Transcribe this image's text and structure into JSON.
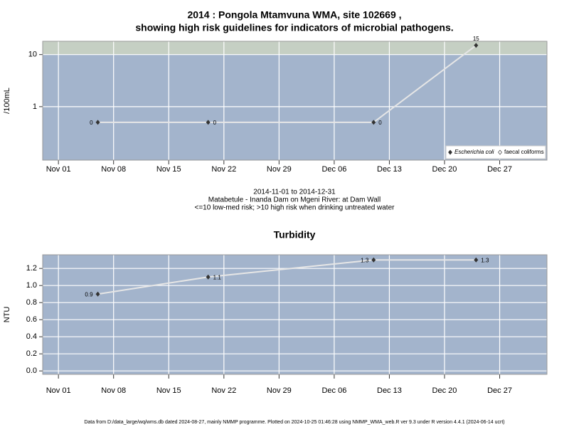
{
  "chart_data": [
    {
      "type": "line",
      "log_y": true,
      "title": [
        "2014 : Pongola Mtamvuna WMA, site 102669 ,",
        "showing high risk guidelines for indicators of microbial pathogens."
      ],
      "y_label": "/100mL",
      "x": [
        "2014-11-06",
        "2014-11-20",
        "2014-12-11",
        "2014-12-24"
      ],
      "series": [
        {
          "name": "Escherichia coli",
          "color": "#333333",
          "values": [
            0.5,
            0.5,
            0.5,
            15
          ],
          "value_labels": [
            "0",
            "0",
            "0",
            "15"
          ]
        },
        {
          "name": "faecal coliforms",
          "color": "#ffffff",
          "values": [
            null,
            null,
            null,
            null
          ]
        }
      ],
      "xlim": [
        "2014-10-30",
        "2015-01-02"
      ],
      "xticks": [
        {
          "value": "2014-11-01",
          "label": "Nov 01"
        },
        {
          "value": "2014-11-08",
          "label": "Nov 08"
        },
        {
          "value": "2014-11-15",
          "label": "Nov 15"
        },
        {
          "value": "2014-11-22",
          "label": "Nov 22"
        },
        {
          "value": "2014-11-29",
          "label": "Nov 29"
        },
        {
          "value": "2014-12-06",
          "label": "Dec 06"
        },
        {
          "value": "2014-12-13",
          "label": "Dec 13"
        },
        {
          "value": "2014-12-20",
          "label": "Dec 20"
        },
        {
          "value": "2014-12-27",
          "label": "Dec 27"
        }
      ],
      "ylim": [
        0.094,
        18
      ],
      "yticks": [
        1,
        10
      ],
      "grid": true,
      "background": "#a3b4cc",
      "line_color": "#e6e6e6",
      "risk_band": {
        "from": 10,
        "color": "#c5cfc3"
      },
      "legend": "bottom-right",
      "notes": [
        "2014-11-01 to 2014-12-31",
        "Matabetule - Inanda Dam on Mgeni River: at Dam Wall",
        "<=10 low-med risk; >10 high risk when drinking untreated water"
      ]
    },
    {
      "type": "line",
      "log_y": false,
      "title": [
        "Turbidity"
      ],
      "y_label": "NTU",
      "x": [
        "2014-11-06",
        "2014-11-20",
        "2014-12-11",
        "2014-12-24"
      ],
      "series": [
        {
          "name": "Turbidity",
          "color": "#333333",
          "values": [
            0.9,
            1.1,
            1.3,
            1.3
          ]
        }
      ],
      "xlim": [
        "2014-10-30",
        "2015-01-02"
      ],
      "xticks": [
        {
          "value": "2014-11-01",
          "label": "Nov 01"
        },
        {
          "value": "2014-11-08",
          "label": "Nov 08"
        },
        {
          "value": "2014-11-15",
          "label": "Nov 15"
        },
        {
          "value": "2014-11-22",
          "label": "Nov 22"
        },
        {
          "value": "2014-11-29",
          "label": "Nov 29"
        },
        {
          "value": "2014-12-06",
          "label": "Dec 06"
        },
        {
          "value": "2014-12-13",
          "label": "Dec 13"
        },
        {
          "value": "2014-12-20",
          "label": "Dec 20"
        },
        {
          "value": "2014-12-27",
          "label": "Dec 27"
        }
      ],
      "ylim": [
        -0.04,
        1.36
      ],
      "yticks": [
        {
          "value": 0,
          "label": "0.0"
        },
        {
          "value": 0.2,
          "label": "0.2"
        },
        {
          "value": 0.4,
          "label": "0.4"
        },
        {
          "value": 0.6,
          "label": "0.6"
        },
        {
          "value": 0.8,
          "label": "0.8"
        },
        {
          "value": 1,
          "label": "1.0"
        },
        {
          "value": 1.2,
          "label": "1.2"
        }
      ],
      "grid": true,
      "background": "#a3b4cc",
      "line_color": "#e6e6e6"
    }
  ],
  "footer": "Data from D:/data_large/wq/wms.db dated 2024-08-27, mainly NMMP programme. Plotted on 2024-10-25 01:46:28 using NMMP_WMA_web.R ver 9.3 under R version 4.4.1 (2024-06-14 ucrt)"
}
